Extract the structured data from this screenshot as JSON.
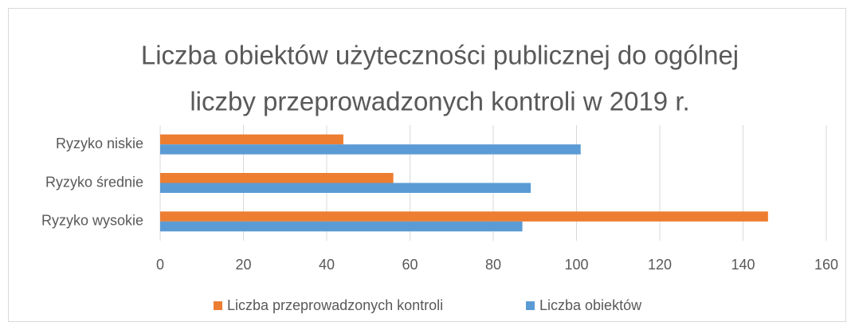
{
  "chart_data": {
    "type": "hbar",
    "title": [
      "Liczba obiektów użyteczności publicznej do ogólnej",
      "liczby przeprowadzonych kontroli w 2019 r."
    ],
    "categories": [
      "Ryzyko niskie",
      "Ryzyko średnie",
      "Ryzyko wysokie"
    ],
    "series": [
      {
        "name": "Liczba przeprowadzonych kontroli",
        "color": "#ed7d31",
        "values": [
          44,
          56,
          146
        ]
      },
      {
        "name": "Liczba obiektów",
        "color": "#5b9bd5",
        "values": [
          101,
          89,
          87
        ]
      }
    ],
    "xlim": [
      0,
      160
    ],
    "xticks": [
      0,
      20,
      40,
      60,
      80,
      100,
      120,
      140,
      160
    ],
    "grid": true,
    "legend": "bottom"
  }
}
